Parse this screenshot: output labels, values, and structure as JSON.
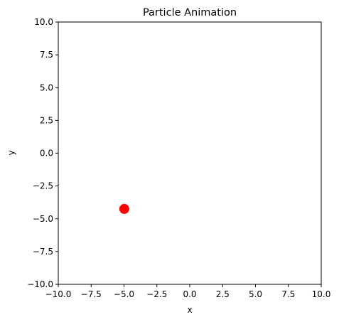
{
  "chart_data": {
    "type": "scatter",
    "title": "Particle Animation",
    "xlabel": "x",
    "ylabel": "y",
    "xlim": [
      -10,
      10
    ],
    "ylim": [
      -10,
      10
    ],
    "xticks": [
      -10,
      -7.5,
      -5,
      -2.5,
      0,
      2.5,
      5,
      7.5,
      10
    ],
    "yticks": [
      -10,
      -7.5,
      -5,
      -2.5,
      0,
      2.5,
      5,
      7.5,
      10
    ],
    "xtick_labels": [
      "−10.0",
      "−7.5",
      "−5.0",
      "−2.5",
      "0.0",
      "2.5",
      "5.0",
      "7.5",
      "10.0"
    ],
    "ytick_labels": [
      "−10.0",
      "−7.5",
      "−5.0",
      "−2.5",
      "0.0",
      "2.5",
      "5.0",
      "7.5",
      "10.0"
    ],
    "grid": false,
    "points": [
      {
        "x": -4.98,
        "y": -4.25,
        "color": "#ff0000"
      }
    ]
  }
}
